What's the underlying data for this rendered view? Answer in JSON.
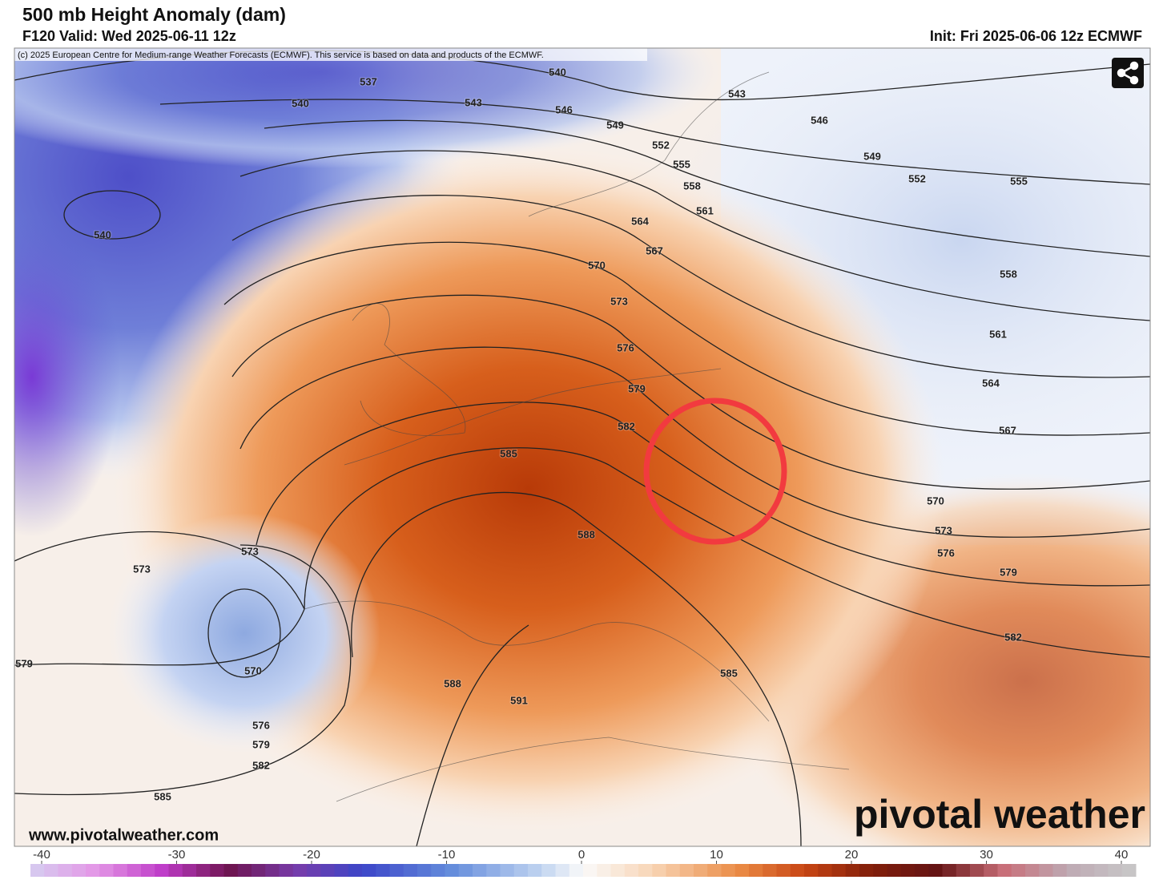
{
  "header": {
    "title": "500 mb Height Anomaly (dam)",
    "valid": "F120 Valid: Wed 2025-06-11 12z",
    "init": "Init: Fri 2025-06-06 12z ECMWF"
  },
  "map": {
    "copyright": "(c) 2025 European Centre for Medium-range Weather Forecasts (ECMWF). This service is based on data and products of the ECMWF.",
    "contour_labels": [
      537,
      540,
      540,
      543,
      546,
      549,
      543,
      546,
      552,
      555,
      549,
      552,
      555,
      558,
      561,
      540,
      564,
      567,
      570,
      558,
      573,
      561,
      576,
      564,
      579,
      582,
      567,
      585,
      570,
      573,
      576,
      588,
      573,
      573,
      579,
      582,
      579,
      570,
      585,
      588,
      591,
      576,
      579,
      582,
      585
    ],
    "watermark": "pivotal weather",
    "url": "www.pivotalweather.com"
  },
  "colorbar": {
    "ticks": [
      -40,
      -30,
      -20,
      -10,
      0,
      10,
      20,
      30,
      40
    ]
  }
}
